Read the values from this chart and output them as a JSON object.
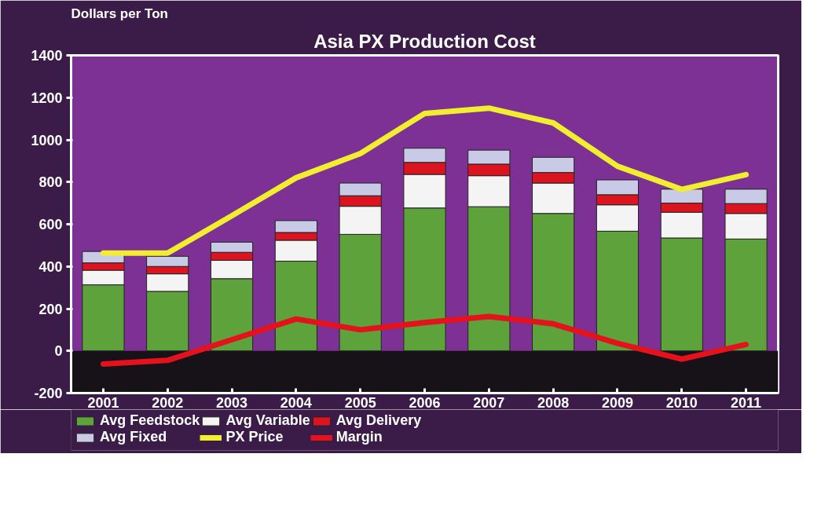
{
  "chart_data": {
    "type": "bar",
    "title": "Asia PX Production Cost",
    "ylabel": "Dollars per Ton",
    "categories": [
      "2001",
      "2002",
      "2003",
      "2004",
      "2005",
      "2006",
      "2007",
      "2008",
      "2009",
      "2010",
      "2011"
    ],
    "stacked": true,
    "ylim": [
      -200,
      1400
    ],
    "yticks": [
      -200,
      0,
      200,
      400,
      600,
      800,
      1000,
      1200,
      1400
    ],
    "grid": false,
    "legend": "bottom",
    "line_style": "solid",
    "marker": "none",
    "bands": [
      {
        "axis": "y",
        "from": -200,
        "to": 0,
        "color": "#161218"
      }
    ],
    "series": [
      {
        "name": "Avg Feedstock",
        "color": "#5ea23b",
        "values": [
          313,
          282,
          342,
          425,
          552,
          677,
          683,
          651,
          567,
          535,
          530
        ]
      },
      {
        "name": "Avg Variable",
        "color": "#f4f4f4",
        "values": [
          69,
          83,
          87,
          99,
          133,
          159,
          147,
          144,
          125,
          122,
          121
        ]
      },
      {
        "name": "Avg Delivery",
        "color": "#dc1420",
        "values": [
          35,
          35,
          38,
          37,
          50,
          57,
          55,
          50,
          48,
          43,
          47
        ]
      },
      {
        "name": "Avg Fixed",
        "color": "#c9cbe6",
        "values": [
          54,
          48,
          48,
          56,
          60,
          67,
          66,
          72,
          70,
          66,
          68
        ]
      },
      {
        "name": "PX Price",
        "type": "line",
        "color": "#f0ee2e",
        "values": [
          463,
          463,
          640,
          820,
          935,
          1125,
          1150,
          1080,
          875,
          765,
          835
        ]
      },
      {
        "name": "Margin",
        "type": "line",
        "color": "#e3121c",
        "values": [
          -62,
          -45,
          53,
          151,
          100,
          134,
          163,
          128,
          36,
          -39,
          30
        ]
      }
    ]
  }
}
